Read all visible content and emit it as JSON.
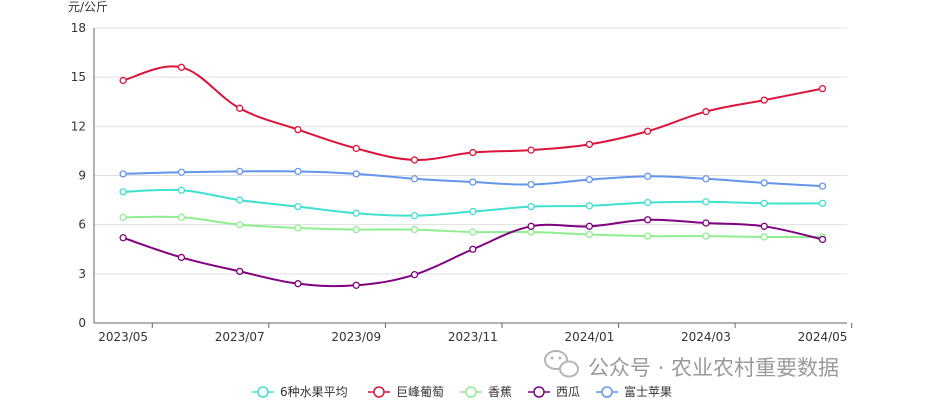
{
  "chart_data": {
    "type": "line",
    "title": "",
    "ylabel": "元/公斤",
    "xlabel": "",
    "ylim": [
      0,
      18
    ],
    "yticks": [
      0,
      3,
      6,
      9,
      12,
      15,
      18
    ],
    "x": [
      "2023/05",
      "2023/06",
      "2023/07",
      "2023/08",
      "2023/09",
      "2023/10",
      "2023/11",
      "2023/12",
      "2024/01",
      "2024/02",
      "2024/03",
      "2024/04",
      "2024/05"
    ],
    "xtick_labels": [
      "2023/05",
      "2023/07",
      "2023/09",
      "2023/11",
      "2024/01",
      "2024/03",
      "2024/05"
    ],
    "grid": "horizontal",
    "legend_position": "bottom",
    "series": [
      {
        "name": "6种水果平均",
        "color": "#40e0d0",
        "values": [
          8.0,
          8.1,
          7.5,
          7.1,
          6.7,
          6.55,
          6.8,
          7.1,
          7.15,
          7.35,
          7.4,
          7.3,
          7.3
        ]
      },
      {
        "name": "巨峰葡萄",
        "color": "#dc143c",
        "values": [
          14.8,
          15.6,
          13.1,
          11.8,
          10.65,
          9.95,
          10.4,
          10.55,
          10.9,
          11.7,
          12.9,
          13.6,
          14.3
        ]
      },
      {
        "name": "香蕉",
        "color": "#90ee90",
        "values": [
          6.45,
          6.45,
          6.0,
          5.8,
          5.7,
          5.7,
          5.55,
          5.55,
          5.4,
          5.3,
          5.3,
          5.25,
          5.25
        ]
      },
      {
        "name": "西瓜",
        "color": "#800080",
        "values": [
          5.2,
          4.0,
          3.15,
          2.4,
          2.3,
          2.95,
          4.5,
          5.9,
          5.9,
          6.3,
          6.1,
          5.9,
          5.1
        ]
      },
      {
        "name": "富士苹果",
        "color": "#6495ed",
        "values": [
          9.1,
          9.2,
          9.25,
          9.25,
          9.1,
          8.8,
          8.6,
          8.45,
          8.75,
          8.95,
          8.8,
          8.55,
          8.35
        ]
      }
    ]
  },
  "watermark": {
    "text": "公众号 · 农业农村重要数据",
    "icon": "wechat-icon"
  }
}
